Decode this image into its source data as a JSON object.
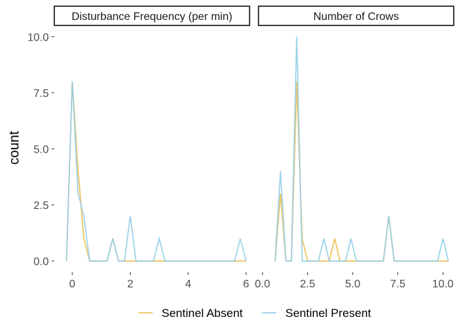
{
  "chart_data": {
    "type": "line",
    "ylabel": "count",
    "xlabel": "",
    "legend": {
      "position": "bottom",
      "entries": [
        {
          "name": "Sentinel Absent",
          "color": "#F0C463"
        },
        {
          "name": "Sentinel Present",
          "color": "#95CFE8"
        }
      ]
    },
    "y_ticks": [
      "0.0",
      "2.5",
      "5.0",
      "7.5",
      "10.0"
    ],
    "y_tick_values": [
      0,
      2.5,
      5,
      7.5,
      10
    ],
    "ylim": [
      -0.5,
      10.5
    ],
    "grid": false,
    "panels": [
      {
        "strip_label": "Disturbance Frequency (per min)",
        "xlim": [
          -0.62,
          6.12
        ],
        "x_ticks": [
          "0",
          "2",
          "4",
          "6"
        ],
        "x_tick_values": [
          0,
          2,
          4,
          6
        ],
        "series": [
          {
            "name": "Sentinel Absent",
            "color": "#F0C463",
            "x": [
              -0.2,
              0.0,
              0.2,
              0.4,
              0.6,
              0.8,
              1.0,
              1.2,
              1.4,
              1.6,
              1.8,
              2.0,
              2.2,
              2.4,
              2.6,
              2.8,
              3.0,
              3.2,
              3.4,
              3.6,
              3.8,
              4.0,
              4.2,
              4.4,
              4.6,
              4.8,
              5.0,
              5.2,
              5.4,
              5.6,
              5.8,
              6.0
            ],
            "y": [
              0,
              8,
              4,
              1,
              0,
              0,
              0,
              0,
              1,
              0,
              0,
              0,
              0,
              0,
              0,
              0,
              0,
              0,
              0,
              0,
              0,
              0,
              0,
              0,
              0,
              0,
              0,
              0,
              0,
              0,
              0,
              0
            ]
          },
          {
            "name": "Sentinel Present",
            "color": "#95CFE8",
            "x": [
              -0.2,
              0.0,
              0.2,
              0.4,
              0.6,
              0.8,
              1.0,
              1.2,
              1.4,
              1.6,
              1.8,
              2.0,
              2.2,
              2.4,
              2.6,
              2.8,
              3.0,
              3.2,
              3.4,
              3.6,
              3.8,
              4.0,
              4.2,
              4.4,
              4.6,
              4.8,
              5.0,
              5.2,
              5.4,
              5.6,
              5.8,
              6.0
            ],
            "y": [
              0,
              8,
              3,
              2,
              0,
              0,
              0,
              0,
              1,
              0,
              0,
              2,
              0,
              0,
              0,
              0,
              1,
              0,
              0,
              0,
              0,
              0,
              0,
              0,
              0,
              0,
              0,
              0,
              0,
              0,
              1,
              0
            ]
          }
        ]
      },
      {
        "strip_label": "Number of Crows",
        "xlim": [
          -0.22,
          10.6
        ],
        "x_ticks": [
          "0.0",
          "2.5",
          "5.0",
          "7.5",
          "10.0"
        ],
        "x_tick_values": [
          0,
          2.5,
          5,
          7.5,
          10
        ],
        "series": [
          {
            "name": "Sentinel Absent",
            "color": "#F0C463",
            "x": [
              0.7,
              1.0,
              1.3,
              1.6,
              1.9,
              2.2,
              2.5,
              2.8,
              3.1,
              3.4,
              3.7,
              4.0,
              4.3,
              4.6,
              4.9,
              5.2,
              5.5,
              5.8,
              6.1,
              6.4,
              6.7,
              7.0,
              7.3,
              7.6,
              7.9,
              8.2,
              8.5,
              8.8,
              9.1,
              9.4,
              9.7,
              10.0,
              10.3
            ],
            "y": [
              0,
              3,
              0,
              0,
              8,
              1,
              0,
              0,
              0,
              0,
              0,
              1,
              0,
              0,
              0,
              0,
              0,
              0,
              0,
              0,
              0,
              2,
              0,
              0,
              0,
              0,
              0,
              0,
              0,
              0,
              0,
              0,
              0
            ]
          },
          {
            "name": "Sentinel Present",
            "color": "#95CFE8",
            "x": [
              0.7,
              1.0,
              1.3,
              1.6,
              1.9,
              2.2,
              2.5,
              2.8,
              3.1,
              3.4,
              3.7,
              4.0,
              4.3,
              4.6,
              4.9,
              5.2,
              5.5,
              5.8,
              6.1,
              6.4,
              6.7,
              7.0,
              7.3,
              7.6,
              7.9,
              8.2,
              8.5,
              8.8,
              9.1,
              9.4,
              9.7,
              10.0,
              10.3
            ],
            "y": [
              0,
              4,
              0,
              0,
              10,
              0,
              0,
              0,
              0,
              1,
              0,
              0,
              0,
              0,
              1,
              0,
              0,
              0,
              0,
              0,
              0,
              2,
              0,
              0,
              0,
              0,
              0,
              0,
              0,
              0,
              0,
              1,
              0
            ]
          }
        ]
      }
    ]
  }
}
